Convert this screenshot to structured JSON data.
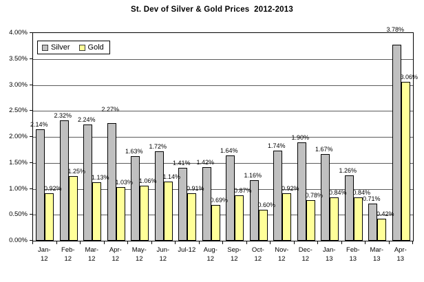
{
  "chart_data": {
    "type": "bar",
    "title": "St. Dev of Silver & Gold Prices  2012-2013",
    "categories": [
      "Jan-12",
      "Feb-12",
      "Mar-12",
      "Apr-12",
      "May-12",
      "Jun-12",
      "Jul-12",
      "Aug-12",
      "Sep-12",
      "Oct-12",
      "Nov-12",
      "Dec-12",
      "Jan-13",
      "Feb-13",
      "Mar-13",
      "Apr-13"
    ],
    "x_tick_lines": [
      [
        "Jan-",
        "12"
      ],
      [
        "Feb-",
        "12"
      ],
      [
        "Mar-",
        "12"
      ],
      [
        "Apr-",
        "12"
      ],
      [
        "May-",
        "12"
      ],
      [
        "Jun-",
        "12"
      ],
      [
        "Jul-12"
      ],
      [
        "Aug-",
        "12"
      ],
      [
        "Sep-",
        "12"
      ],
      [
        "Oct-",
        "12"
      ],
      [
        "Nov-",
        "12"
      ],
      [
        "Dec-",
        "12"
      ],
      [
        "Jan-",
        "13"
      ],
      [
        "Feb-",
        "13"
      ],
      [
        "Mar-",
        "13"
      ],
      [
        "Apr-",
        "13"
      ]
    ],
    "series": [
      {
        "name": "Silver",
        "color": "#C0C0C0",
        "values": [
          2.14,
          2.32,
          2.24,
          2.27,
          1.63,
          1.72,
          1.41,
          1.42,
          1.64,
          1.16,
          1.74,
          1.9,
          1.67,
          1.26,
          0.71,
          3.78
        ],
        "labels": [
          "2.14%",
          "2.32%",
          "2.24%",
          "2.27%",
          "1.63%",
          "1.72%",
          "1.41%",
          "1.42%",
          "1.64%",
          "1.16%",
          "1.74%",
          "1.90%",
          "1.67%",
          "1.26%",
          "0.71%",
          "3.78%"
        ]
      },
      {
        "name": "Gold",
        "color": "#FFFF99",
        "values": [
          0.92,
          1.25,
          1.13,
          1.03,
          1.06,
          1.14,
          0.91,
          0.69,
          0.87,
          0.6,
          0.92,
          0.78,
          0.84,
          0.84,
          0.42,
          3.06
        ],
        "labels": [
          "0.92%",
          "1.25%",
          "1.13%",
          "1.03%",
          "1.06%",
          "1.14%",
          "0.91%",
          "0.69%",
          "0.87%",
          "0.60%",
          "0.92%",
          "0.78%",
          "0.84%",
          "0.84%",
          "0.42%",
          "3.06%"
        ]
      }
    ],
    "ylim": [
      0,
      4
    ],
    "y_ticks": [
      "4.00%",
      "3.50%",
      "3.00%",
      "2.50%",
      "2.00%",
      "1.50%",
      "1.00%",
      "0.50%",
      "0.00%"
    ],
    "grid": true,
    "legend_position": "top-left-inside"
  }
}
